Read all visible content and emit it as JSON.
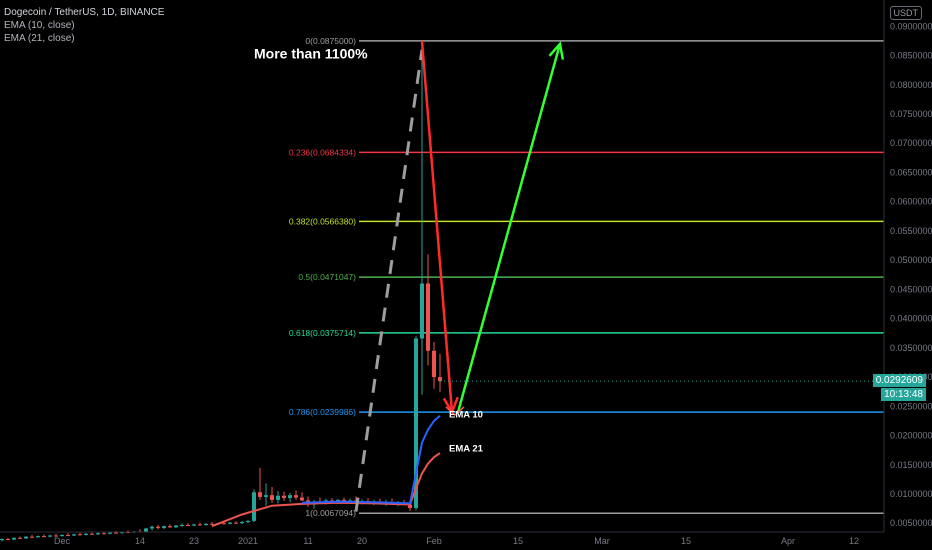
{
  "legend": {
    "symbol": "Dogecoin / TetherUS, 1D, BINANCE",
    "ema10": "EMA (10, close)",
    "ema21": "EMA (21, close)"
  },
  "currency_button": "USDT",
  "current_price": {
    "value": "0.0292609",
    "countdown": "10:13:48",
    "color": "#26a69a"
  },
  "colors": {
    "background": "#000000",
    "up": "#26a69a",
    "down": "#ef5350",
    "ema10": "#2962ff",
    "ema21": "#ef5350",
    "axis_text": "#787b86"
  },
  "chart_data": {
    "type": "candlestick",
    "symbol": "DOGEUSDT",
    "timeframe": "1D",
    "exchange": "BINANCE",
    "ylim": [
      0.0035,
      0.0945
    ],
    "y_ticks": [
      "0.0900000",
      "0.0850000",
      "0.0800000",
      "0.0750000",
      "0.0700000",
      "0.0650000",
      "0.0600000",
      "0.0550000",
      "0.0500000",
      "0.0450000",
      "0.0400000",
      "0.0350000",
      "0.0300000",
      "0.0250000",
      "0.0200000",
      "0.0150000",
      "0.0100000",
      "0.0050000"
    ],
    "x_ticks": [
      {
        "label": "Dec",
        "day": 0
      },
      {
        "label": "14",
        "day": 13
      },
      {
        "label": "23",
        "day": 22
      },
      {
        "label": "2021",
        "day": 31
      },
      {
        "label": "11",
        "day": 41
      },
      {
        "label": "20",
        "day": 50
      },
      {
        "label": "Feb",
        "day": 62
      },
      {
        "label": "15",
        "day": 76
      },
      {
        "label": "Mar",
        "day": 90
      },
      {
        "label": "15",
        "day": 104
      },
      {
        "label": "Apr",
        "day": 121
      },
      {
        "label": "12",
        "day": 132
      }
    ],
    "fib_levels": [
      {
        "label": "0(0.0875000)",
        "value": 0.0875,
        "color": "#9e9e9e"
      },
      {
        "label": "0.236(0.0684334)",
        "value": 0.0684334,
        "color": "#f23645"
      },
      {
        "label": "0.382(0.0566380)",
        "value": 0.056638,
        "color": "#c0e026"
      },
      {
        "label": "0.5(0.0471047)",
        "value": 0.0471047,
        "color": "#4caf50"
      },
      {
        "label": "0.618(0.0375714)",
        "value": 0.0375714,
        "color": "#26d9a0"
      },
      {
        "label": "0.786(0.0239986)",
        "value": 0.0239986,
        "color": "#2196f3"
      },
      {
        "label": "1(0.0067094)",
        "value": 0.0067094,
        "color": "#9e9e9e"
      }
    ],
    "candles": [
      [
        -10,
        0.0021,
        0.0024,
        0.0019,
        0.0023
      ],
      [
        -9,
        0.0023,
        0.0025,
        0.0021,
        0.0022
      ],
      [
        -8,
        0.0022,
        0.0026,
        0.0021,
        0.0025
      ],
      [
        -7,
        0.0025,
        0.0027,
        0.0023,
        0.0024
      ],
      [
        -6,
        0.0024,
        0.0028,
        0.0023,
        0.0027
      ],
      [
        -5,
        0.0027,
        0.003,
        0.0025,
        0.0026
      ],
      [
        -4,
        0.0026,
        0.0029,
        0.0025,
        0.0028
      ],
      [
        -3,
        0.0028,
        0.0031,
        0.0026,
        0.0027
      ],
      [
        -2,
        0.0027,
        0.003,
        0.0026,
        0.0029
      ],
      [
        -1,
        0.0029,
        0.0032,
        0.0027,
        0.0028
      ],
      [
        0,
        0.0028,
        0.0031,
        0.0027,
        0.003
      ],
      [
        1,
        0.003,
        0.0033,
        0.0028,
        0.0029
      ],
      [
        2,
        0.0029,
        0.0032,
        0.0028,
        0.0031
      ],
      [
        3,
        0.0031,
        0.0034,
        0.0029,
        0.003
      ],
      [
        4,
        0.003,
        0.0033,
        0.0029,
        0.0032
      ],
      [
        5,
        0.0032,
        0.0035,
        0.003,
        0.0031
      ],
      [
        6,
        0.0031,
        0.0034,
        0.003,
        0.0033
      ],
      [
        7,
        0.0033,
        0.0036,
        0.0031,
        0.0032
      ],
      [
        8,
        0.0032,
        0.0035,
        0.0031,
        0.0034
      ],
      [
        9,
        0.0034,
        0.0037,
        0.0032,
        0.0033
      ],
      [
        10,
        0.0033,
        0.0036,
        0.0032,
        0.0035
      ],
      [
        11,
        0.0035,
        0.0038,
        0.0033,
        0.0034
      ],
      [
        12,
        0.0034,
        0.0037,
        0.0033,
        0.0036
      ],
      [
        13,
        0.0036,
        0.004,
        0.0034,
        0.0035
      ],
      [
        14,
        0.0035,
        0.0042,
        0.0034,
        0.0041
      ],
      [
        15,
        0.0041,
        0.0046,
        0.0038,
        0.0044
      ],
      [
        16,
        0.0044,
        0.0047,
        0.004,
        0.0042
      ],
      [
        17,
        0.0042,
        0.0046,
        0.004,
        0.0045
      ],
      [
        18,
        0.0045,
        0.0048,
        0.0042,
        0.0043
      ],
      [
        19,
        0.0043,
        0.0047,
        0.0042,
        0.0046
      ],
      [
        20,
        0.0046,
        0.005,
        0.0044,
        0.0047
      ],
      [
        21,
        0.0047,
        0.005,
        0.0045,
        0.0046
      ],
      [
        22,
        0.0046,
        0.0049,
        0.0045,
        0.0048
      ],
      [
        23,
        0.0048,
        0.0051,
        0.0046,
        0.0047
      ],
      [
        24,
        0.0047,
        0.005,
        0.0046,
        0.0049
      ],
      [
        25,
        0.0049,
        0.0052,
        0.0047,
        0.0048
      ],
      [
        26,
        0.0048,
        0.0051,
        0.0047,
        0.005
      ],
      [
        27,
        0.005,
        0.0052,
        0.0048,
        0.0049
      ],
      [
        28,
        0.0049,
        0.0052,
        0.0048,
        0.0051
      ],
      [
        29,
        0.0051,
        0.0053,
        0.0049,
        0.005
      ],
      [
        30,
        0.005,
        0.0054,
        0.0049,
        0.0052
      ],
      [
        31,
        0.0052,
        0.0055,
        0.005,
        0.0054
      ],
      [
        32,
        0.0054,
        0.0108,
        0.0052,
        0.0103
      ],
      [
        33,
        0.0103,
        0.0145,
        0.009,
        0.0095
      ],
      [
        34,
        0.0095,
        0.0118,
        0.008,
        0.0098
      ],
      [
        35,
        0.0098,
        0.0112,
        0.0085,
        0.009
      ],
      [
        36,
        0.009,
        0.0105,
        0.0084,
        0.0097
      ],
      [
        37,
        0.0097,
        0.0104,
        0.0088,
        0.0093
      ],
      [
        38,
        0.0093,
        0.0102,
        0.0086,
        0.0098
      ],
      [
        39,
        0.0098,
        0.0106,
        0.009,
        0.0094
      ],
      [
        40,
        0.0094,
        0.0103,
        0.0088,
        0.0089
      ],
      [
        41,
        0.0089,
        0.0096,
        0.0078,
        0.0082
      ],
      [
        42,
        0.0082,
        0.009,
        0.0075,
        0.0087
      ],
      [
        43,
        0.0087,
        0.0094,
        0.0083,
        0.0085
      ],
      [
        44,
        0.0085,
        0.0092,
        0.0082,
        0.0089
      ],
      [
        45,
        0.0089,
        0.0093,
        0.0084,
        0.0086
      ],
      [
        46,
        0.0086,
        0.0091,
        0.0083,
        0.009
      ],
      [
        47,
        0.009,
        0.0094,
        0.0086,
        0.0087
      ],
      [
        48,
        0.0087,
        0.0092,
        0.0084,
        0.0089
      ],
      [
        49,
        0.0089,
        0.0096,
        0.0085,
        0.0086
      ],
      [
        50,
        0.0086,
        0.0091,
        0.0082,
        0.0088
      ],
      [
        51,
        0.0088,
        0.0093,
        0.0084,
        0.0085
      ],
      [
        52,
        0.0085,
        0.009,
        0.0081,
        0.0087
      ],
      [
        53,
        0.0087,
        0.0092,
        0.0083,
        0.0084
      ],
      [
        54,
        0.0084,
        0.009,
        0.008,
        0.0086
      ],
      [
        55,
        0.0086,
        0.0092,
        0.0082,
        0.0083
      ],
      [
        56,
        0.0083,
        0.0088,
        0.0079,
        0.0085
      ],
      [
        57,
        0.0085,
        0.009,
        0.0081,
        0.0082
      ],
      [
        58,
        0.0082,
        0.0088,
        0.0071,
        0.0076
      ],
      [
        59,
        0.0076,
        0.037,
        0.0072,
        0.0366
      ],
      [
        60,
        0.0366,
        0.0875,
        0.027,
        0.046
      ],
      [
        61,
        0.046,
        0.051,
        0.032,
        0.0345
      ],
      [
        62,
        0.0345,
        0.036,
        0.028,
        0.03
      ],
      [
        63,
        0.03,
        0.034,
        0.0275,
        0.0293
      ]
    ],
    "ema10": [
      [
        40,
        0.0085
      ],
      [
        46,
        0.0087
      ],
      [
        52,
        0.0086
      ],
      [
        58,
        0.0084
      ],
      [
        59,
        0.0135
      ],
      [
        60,
        0.0188
      ],
      [
        61,
        0.021
      ],
      [
        62,
        0.0225
      ],
      [
        63,
        0.0234
      ]
    ],
    "ema21": [
      [
        25,
        0.0045
      ],
      [
        30,
        0.0065
      ],
      [
        35,
        0.008
      ],
      [
        40,
        0.0083
      ],
      [
        46,
        0.0085
      ],
      [
        52,
        0.0084
      ],
      [
        58,
        0.0082
      ],
      [
        59,
        0.011
      ],
      [
        60,
        0.0135
      ],
      [
        61,
        0.0152
      ],
      [
        62,
        0.0163
      ],
      [
        63,
        0.017
      ]
    ],
    "drawings": {
      "dashed_trend": {
        "from": [
          49,
          0.007
        ],
        "to": [
          60,
          0.086
        ],
        "color": "#9e9e9e"
      },
      "red_arrow": {
        "from": [
          60,
          0.0875
        ],
        "to": [
          65,
          0.024
        ],
        "color": "#ff2a2a"
      },
      "green_arrow": {
        "from": [
          66,
          0.024
        ],
        "to": [
          83,
          0.087
        ],
        "color": "#33ff33"
      },
      "cross_box": {
        "from": [
          64,
          0.0242
        ],
        "to": [
          67,
          0.0242
        ]
      }
    },
    "annotations": [
      {
        "text": "More than 1100%",
        "day": 32,
        "value": 0.0845,
        "color": "#ffffff"
      },
      {
        "text": "EMA 10",
        "day": 64.5,
        "value": 0.0231,
        "color": "#ffffff"
      },
      {
        "text": "EMA 21",
        "day": 64.5,
        "value": 0.0173,
        "color": "#ffffff"
      }
    ]
  }
}
